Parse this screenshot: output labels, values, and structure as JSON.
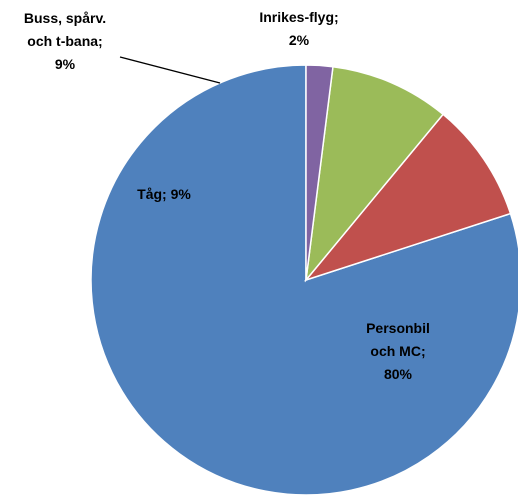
{
  "chart_data": {
    "type": "pie",
    "title": "",
    "slices": [
      {
        "label_lines": [
          "Personbil",
          "och MC;",
          "80%"
        ],
        "value": 80,
        "color": "#4f81bd"
      },
      {
        "label_lines": [
          "Tåg; 9%"
        ],
        "value": 9,
        "color": "#c0504d"
      },
      {
        "label_lines": [
          "Buss, spårv.",
          "och t-bana;",
          "9%"
        ],
        "value": 9,
        "color": "#9bbb59"
      },
      {
        "label_lines": [
          "Inrikes-flyg;",
          "2%"
        ],
        "value": 2,
        "color": "#8064a2"
      }
    ],
    "start_angle": "top",
    "direction": "counterclockwise",
    "slice_border_color": "#ffffff",
    "legend": "none"
  }
}
